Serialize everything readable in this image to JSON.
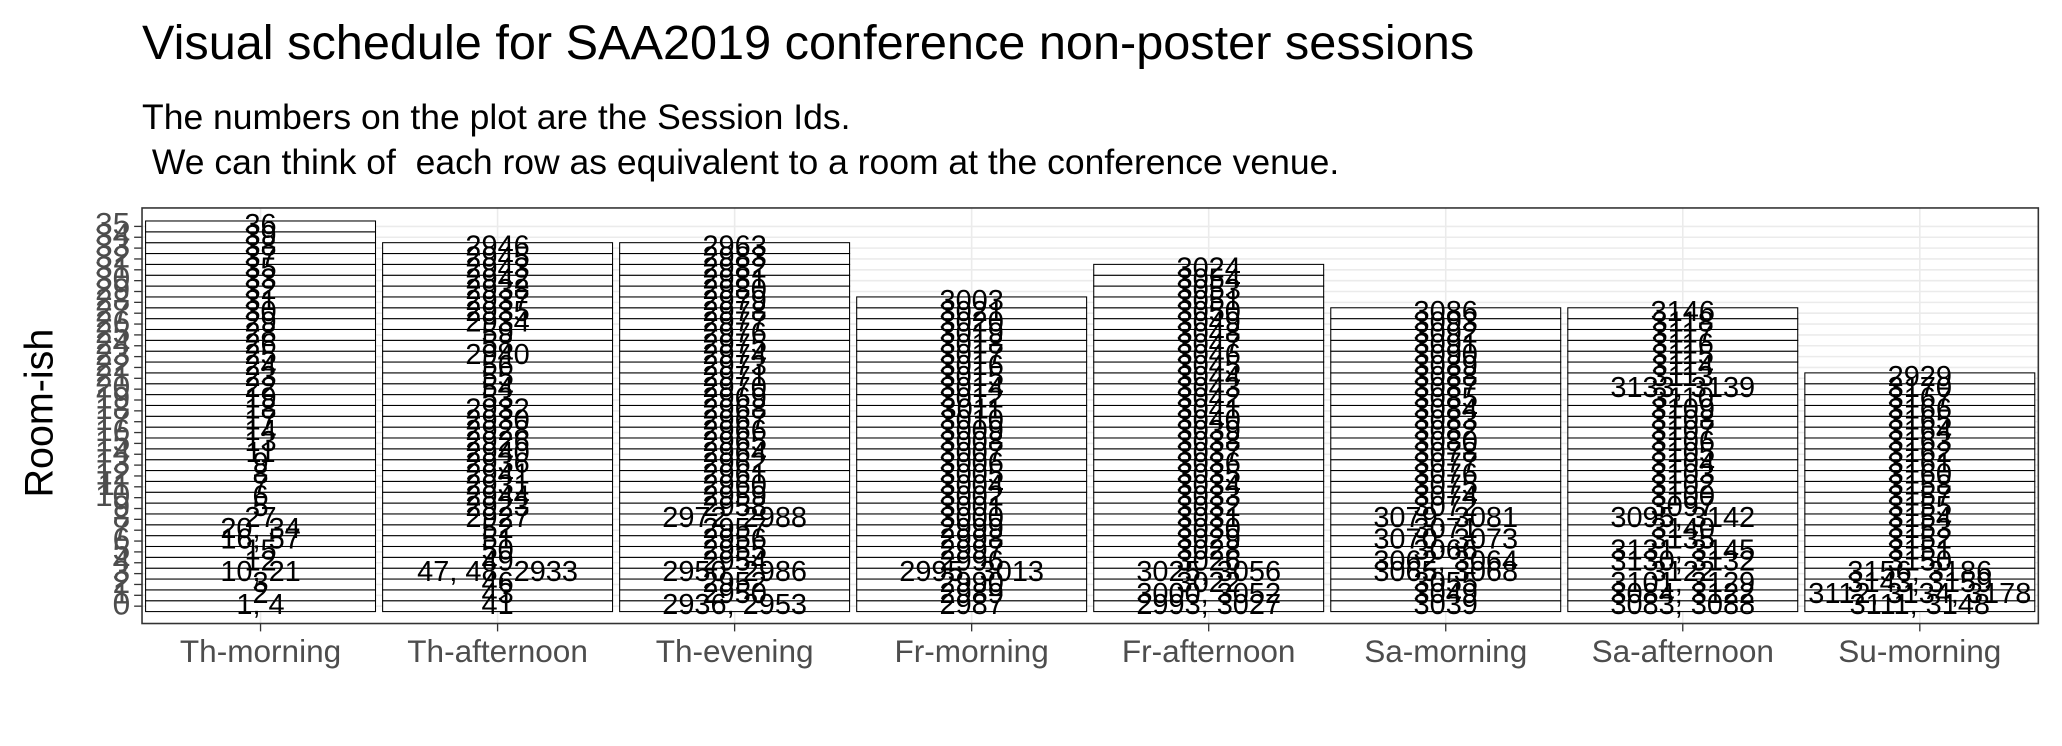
{
  "chart_data": {
    "type": "tile",
    "title": "Visual schedule for SAA2019 conference non-poster sessions",
    "subtitle": [
      "The numbers on the plot are the Session Ids.",
      " We can think of  each row as equivalent to a room at the conference venue."
    ],
    "y_label": "Room-ish",
    "ylim": [
      -1.6,
      36.7
    ],
    "yticks": [
      0,
      1,
      2,
      3,
      4,
      5,
      6,
      7,
      8,
      9,
      10,
      11,
      12,
      13,
      14,
      15,
      16,
      17,
      18,
      19,
      20,
      21,
      22,
      23,
      24,
      25,
      26,
      27,
      28,
      29,
      30,
      31,
      32,
      33,
      34,
      35
    ],
    "grid": true,
    "categories": [
      "Th-morning",
      "Th-afternoon",
      "Th-evening",
      "Fr-morning",
      "Fr-afternoon",
      "Sa-morning",
      "Sa-afternoon",
      "Su-morning"
    ],
    "sessions": [
      [
        "1, 4",
        "2",
        "3",
        "10, 21",
        "12",
        "15",
        "16, 57",
        "20, 34",
        "27",
        "5",
        "6",
        "7",
        "8",
        "9",
        "11",
        "13",
        "14",
        "17",
        "18",
        "19",
        "22",
        "23",
        "24",
        "25",
        "26",
        "28",
        "29",
        "30",
        "31",
        "32",
        "33",
        "35",
        "37",
        "38",
        "39",
        "36"
      ],
      [
        "41",
        "43",
        "46",
        "47, 48, 2933",
        "49",
        "50",
        "51",
        "52",
        "2927",
        "2923",
        "2944",
        "2931",
        "2941",
        "2936",
        "2940",
        "2926",
        "2928",
        "2930",
        "2932",
        "53",
        "54",
        "55",
        "56",
        "2940",
        "58",
        "59",
        "2934",
        "2935",
        "2937",
        "2938",
        "2942",
        "2943",
        "2945",
        "2946"
      ],
      [
        "2936, 2953",
        "2950",
        "2952",
        "2950, 2986",
        "2954",
        "2955",
        "2956",
        "2957",
        "2972, 2988",
        "2958",
        "2959",
        "2960",
        "2961",
        "2962",
        "2964",
        "2965",
        "2966",
        "2967",
        "2968",
        "2969",
        "2970",
        "2971",
        "2973",
        "2974",
        "2975",
        "2976",
        "2977",
        "2978",
        "2979",
        "2980",
        "2981",
        "2982",
        "2983",
        "2963"
      ],
      [
        "2987",
        "2989",
        "2990",
        "2995, 3013",
        "2996",
        "2997",
        "2998",
        "2999",
        "3000",
        "3001",
        "3002",
        "3004",
        "3005",
        "3006",
        "3007",
        "3008",
        "3009",
        "3010",
        "3011",
        "3012",
        "3014",
        "3015",
        "3016",
        "3017",
        "3018",
        "3019",
        "3020",
        "3021",
        "3003"
      ],
      [
        "2993, 3027",
        "3000, 3052",
        "3022",
        "3025, 3056",
        "3026",
        "3028",
        "3029",
        "3030",
        "3031",
        "3032",
        "3033",
        "3034",
        "3035",
        "3036",
        "3037",
        "3038",
        "3039",
        "3040",
        "3041",
        "3042",
        "3043",
        "3044",
        "3045",
        "3046",
        "3047",
        "3048",
        "3049",
        "3050",
        "3051",
        "3053",
        "3054",
        "3024"
      ],
      [
        "3039",
        "3049",
        "3055",
        "3065, 3068",
        "3062, 3064",
        "3066",
        "3070, 3073",
        "3071",
        "3079, 3081",
        "3072",
        "3074",
        "3075",
        "3076",
        "3077",
        "3078",
        "3080",
        "3082",
        "3083",
        "3084",
        "3085",
        "3087",
        "3088",
        "3089",
        "3090",
        "3091",
        "3092",
        "3093",
        "3086"
      ],
      [
        "3083, 3088",
        "3084, 3122",
        "3101, 3129",
        "3122",
        "3130, 3132",
        "3131, 3145",
        "3135",
        "3140",
        "3095, 3142",
        "3097",
        "3100",
        "3102",
        "3103",
        "3104",
        "3105",
        "3106",
        "3107",
        "3108",
        "3109",
        "3110",
        "3133, 3139",
        "3113",
        "3114",
        "3115",
        "3116",
        "3117",
        "3118",
        "3146"
      ],
      [
        "3111, 3148",
        "3112, 3134, 3178",
        "3143, 3159",
        "3156, 3186",
        "3150",
        "3151",
        "3152",
        "3153",
        "3154",
        "3155",
        "3157",
        "3158",
        "3160",
        "3161",
        "3162",
        "3163",
        "3164",
        "3165",
        "3166",
        "3167",
        "3170",
        "2929"
      ]
    ]
  }
}
